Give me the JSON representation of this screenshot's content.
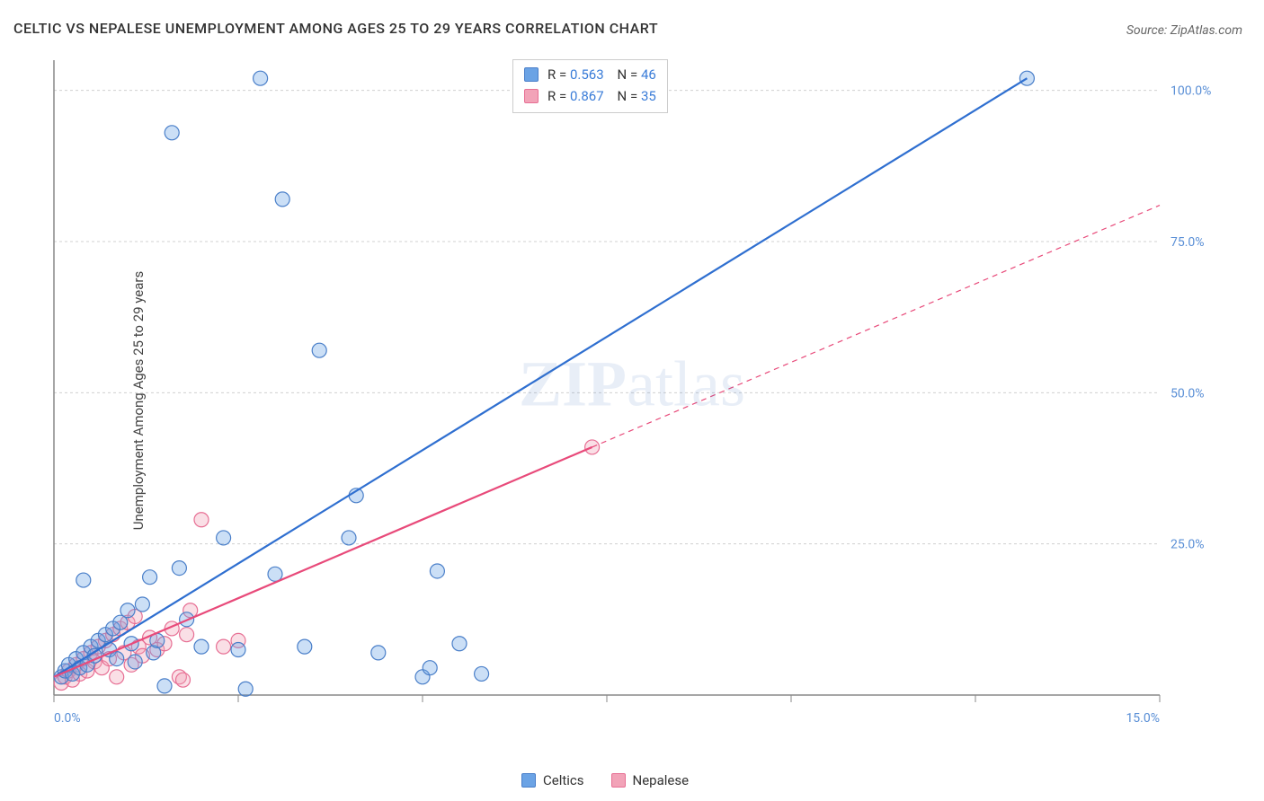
{
  "title": "CELTIC VS NEPALESE UNEMPLOYMENT AMONG AGES 25 TO 29 YEARS CORRELATION CHART",
  "source": "Source: ZipAtlas.com",
  "ylabel": "Unemployment Among Ages 25 to 29 years",
  "watermark_bold": "ZIP",
  "watermark_light": "atlas",
  "chart": {
    "type": "scatter",
    "xlim": [
      0,
      15
    ],
    "ylim": [
      0,
      105
    ],
    "xtick_positions": [
      0,
      2.5,
      5,
      7.5,
      10,
      12.5,
      15
    ],
    "xtick_labels": {
      "0": "0.0%",
      "15": "15.0%"
    },
    "ytick_positions": [
      25,
      50,
      75,
      100
    ],
    "ytick_labels": [
      "25.0%",
      "50.0%",
      "75.0%",
      "100.0%"
    ],
    "grid_color": "#d0d0d0",
    "axis_color": "#888888",
    "background_color": "#ffffff",
    "tick_label_color": "#5a8fd6",
    "marker_radius": 8,
    "marker_stroke_width": 1.2,
    "marker_fill_opacity": 0.35,
    "trendline_width": 2.2,
    "extrapolate_dash": "6,5",
    "series": [
      {
        "name": "Celtics",
        "color": "#6ba3e5",
        "stroke": "#4a7fc9",
        "trend_color": "#2f6fd0",
        "r": "0.563",
        "n": "46",
        "trendline": {
          "x1": 0,
          "y1": 3,
          "x2": 13.2,
          "y2": 102
        },
        "extrapolate": null,
        "points": [
          [
            0.1,
            3
          ],
          [
            0.15,
            4
          ],
          [
            0.2,
            5
          ],
          [
            0.25,
            3.5
          ],
          [
            0.3,
            6
          ],
          [
            0.35,
            4.5
          ],
          [
            0.4,
            7
          ],
          [
            0.45,
            5
          ],
          [
            0.5,
            8
          ],
          [
            0.55,
            6.5
          ],
          [
            0.6,
            9
          ],
          [
            0.7,
            10
          ],
          [
            0.75,
            7.5
          ],
          [
            0.8,
            11
          ],
          [
            0.85,
            6
          ],
          [
            0.9,
            12
          ],
          [
            1.0,
            14
          ],
          [
            1.05,
            8.5
          ],
          [
            1.1,
            5.5
          ],
          [
            1.2,
            15
          ],
          [
            1.3,
            19.5
          ],
          [
            1.35,
            7
          ],
          [
            1.4,
            9
          ],
          [
            1.5,
            1.5
          ],
          [
            1.6,
            93
          ],
          [
            1.7,
            21
          ],
          [
            1.8,
            12.5
          ],
          [
            2.0,
            8
          ],
          [
            2.3,
            26
          ],
          [
            2.5,
            7.5
          ],
          [
            2.6,
            1
          ],
          [
            2.8,
            102
          ],
          [
            3.0,
            20
          ],
          [
            3.1,
            82
          ],
          [
            3.4,
            8
          ],
          [
            3.6,
            57
          ],
          [
            4.0,
            26
          ],
          [
            4.1,
            33
          ],
          [
            4.4,
            7
          ],
          [
            5.0,
            3
          ],
          [
            5.1,
            4.5
          ],
          [
            5.2,
            20.5
          ],
          [
            5.5,
            8.5
          ],
          [
            5.8,
            3.5
          ],
          [
            13.2,
            102
          ],
          [
            0.4,
            19
          ]
        ]
      },
      {
        "name": "Nepalese",
        "color": "#f2a3b8",
        "stroke": "#e76f94",
        "trend_color": "#e84a7a",
        "r": "0.867",
        "n": "35",
        "trendline": {
          "x1": 0,
          "y1": 3,
          "x2": 7.3,
          "y2": 41
        },
        "extrapolate": {
          "x1": 7.3,
          "y1": 41,
          "x2": 15,
          "y2": 81
        },
        "points": [
          [
            0.1,
            2
          ],
          [
            0.15,
            3
          ],
          [
            0.2,
            4
          ],
          [
            0.25,
            2.5
          ],
          [
            0.3,
            5
          ],
          [
            0.35,
            3.5
          ],
          [
            0.4,
            6
          ],
          [
            0.45,
            4
          ],
          [
            0.5,
            7
          ],
          [
            0.55,
            5.5
          ],
          [
            0.6,
            8
          ],
          [
            0.65,
            4.5
          ],
          [
            0.7,
            9
          ],
          [
            0.75,
            6
          ],
          [
            0.8,
            10
          ],
          [
            0.85,
            3
          ],
          [
            0.9,
            11
          ],
          [
            0.95,
            7
          ],
          [
            1.0,
            12
          ],
          [
            1.05,
            5
          ],
          [
            1.1,
            13
          ],
          [
            1.15,
            8
          ],
          [
            1.2,
            6.5
          ],
          [
            1.3,
            9.5
          ],
          [
            1.4,
            7.5
          ],
          [
            1.5,
            8.5
          ],
          [
            1.6,
            11
          ],
          [
            1.7,
            3
          ],
          [
            1.75,
            2.5
          ],
          [
            1.8,
            10
          ],
          [
            1.85,
            14
          ],
          [
            2.0,
            29
          ],
          [
            2.3,
            8
          ],
          [
            2.5,
            9
          ],
          [
            7.3,
            41
          ]
        ]
      }
    ]
  },
  "legend": {
    "r_label": "R",
    "n_label": "N",
    "eq": "="
  }
}
